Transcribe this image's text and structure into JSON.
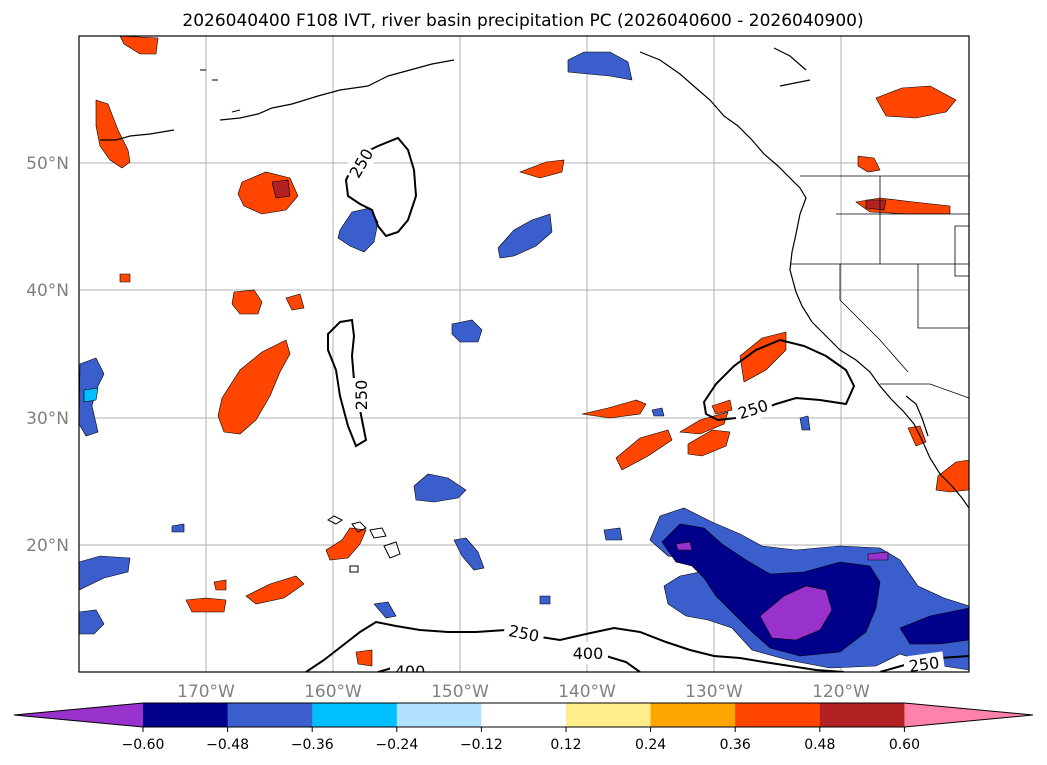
{
  "title": "2026040400 F108 IVT, river basin precipitation PC (2026040600 - 2026040900)",
  "map": {
    "lat_labels": [
      "50°N",
      "40°N",
      "30°N",
      "20°N"
    ],
    "lon_labels": [
      "170°W",
      "160°W",
      "150°W",
      "140°W",
      "130°W",
      "120°W"
    ],
    "extent": {
      "lon": [
        -180,
        -110
      ],
      "lat": [
        10,
        60
      ]
    },
    "gridlines": true,
    "ivt_contours": {
      "levels": [
        250,
        400
      ],
      "labels": [
        "250",
        "250",
        "250",
        "250",
        "400",
        "400",
        "250"
      ]
    }
  },
  "colorbar": {
    "ticks": [
      "−0.60",
      "−0.48",
      "−0.36",
      "−0.24",
      "−0.12",
      "0.12",
      "0.24",
      "0.36",
      "0.48",
      "0.60"
    ],
    "colors": [
      "#9932CC",
      "#00008B",
      "#3A5FCD",
      "#00BFFF",
      "#B0E2FF",
      "#FFFFFF",
      "#FFEC8B",
      "#FFA500",
      "#FF4500",
      "#B22222",
      "#FF82AB"
    ]
  }
}
